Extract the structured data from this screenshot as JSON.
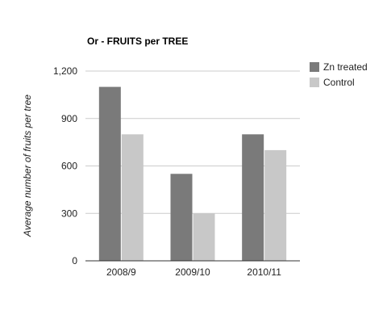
{
  "chart_data": {
    "type": "bar",
    "title": "Or - FRUITS per TREE",
    "ylabel": "Average number of fruits per tree",
    "xlabel": "",
    "categories": [
      "2008/9",
      "2009/10",
      "2010/11"
    ],
    "series": [
      {
        "name": "Zn treated",
        "values": [
          1100,
          550,
          800
        ],
        "color": "#7a7a7a"
      },
      {
        "name": "Control",
        "values": [
          800,
          300,
          700
        ],
        "color": "#c8c8c8"
      }
    ],
    "ylim": [
      0,
      1200
    ],
    "yticks": [
      0,
      300,
      600,
      900,
      1200
    ],
    "ytick_labels": [
      "0",
      "300",
      "600",
      "900",
      "1,200"
    ],
    "grid": true,
    "legend_position": "right"
  }
}
